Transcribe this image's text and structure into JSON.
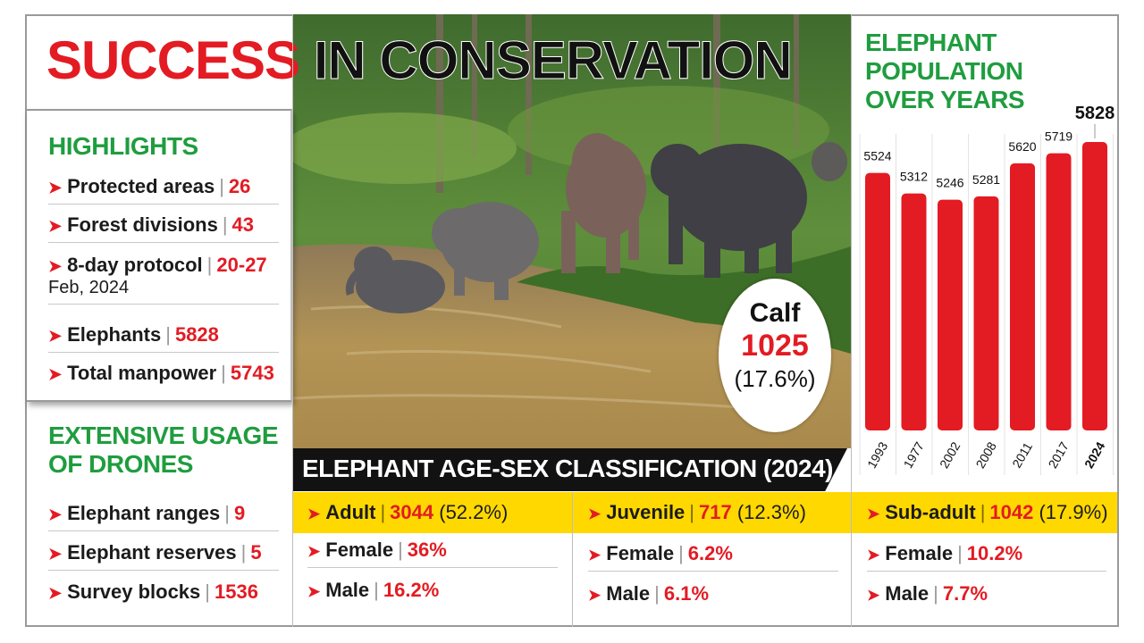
{
  "title": {
    "part1": "SUCCESS",
    "part2": "IN CONSERVATION"
  },
  "highlights": {
    "heading": "HIGHLIGHTS",
    "items": [
      {
        "label": "Protected areas",
        "value": "26"
      },
      {
        "label": "Forest divisions",
        "value": "43"
      },
      {
        "label": "8-day protocol",
        "value": "20-27",
        "sub": "Feb, 2024"
      },
      {
        "label": "Elephants",
        "value": "5828"
      },
      {
        "label": "Total manpower",
        "value": "5743"
      }
    ]
  },
  "drones": {
    "heading_line1": "EXTENSIVE USAGE",
    "heading_line2": "OF DRONES",
    "items": [
      {
        "label": "Elephant ranges",
        "value": "9"
      },
      {
        "label": "Elephant reserves",
        "value": "5"
      },
      {
        "label": "Survey blocks",
        "value": "1536"
      }
    ]
  },
  "calf": {
    "label": "Calf",
    "value": "1025",
    "pct": "(17.6%)"
  },
  "classification": {
    "banner": "ELEPHANT AGE-SEX CLASSIFICATION (2024)",
    "groups": [
      {
        "label": "Adult",
        "value": "3044",
        "pct": "(52.2%)",
        "female": {
          "label": "Female",
          "value": "36%"
        },
        "male": {
          "label": "Male",
          "value": "16.2%"
        }
      },
      {
        "label": "Juvenile",
        "value": "717",
        "pct": "(12.3%)",
        "female": {
          "label": "Female",
          "value": "6.2%"
        },
        "male": {
          "label": "Male",
          "value": "6.1%"
        }
      },
      {
        "label": "Sub-adult",
        "value": "1042",
        "pct": "(17.9%)",
        "female": {
          "label": "Female",
          "value": "10.2%"
        },
        "male": {
          "label": "Male",
          "value": "7.7%"
        }
      }
    ]
  },
  "chart_title": {
    "line1": "ELEPHANT POPULATION",
    "line2": "OVER YEARS"
  },
  "chart_data": {
    "type": "bar",
    "title": "ELEPHANT POPULATION OVER YEARS",
    "categories": [
      "1993",
      "1977",
      "2002",
      "2008",
      "2011",
      "2017",
      "2024"
    ],
    "values": [
      5524,
      5312,
      5246,
      5281,
      5620,
      5719,
      5828
    ],
    "highlight_last": true,
    "bar_color": "#e31b23",
    "grid": true
  },
  "colors": {
    "accent_red": "#e31b23",
    "heading_green": "#1f9d3f",
    "strip_yellow": "#ffd800"
  }
}
